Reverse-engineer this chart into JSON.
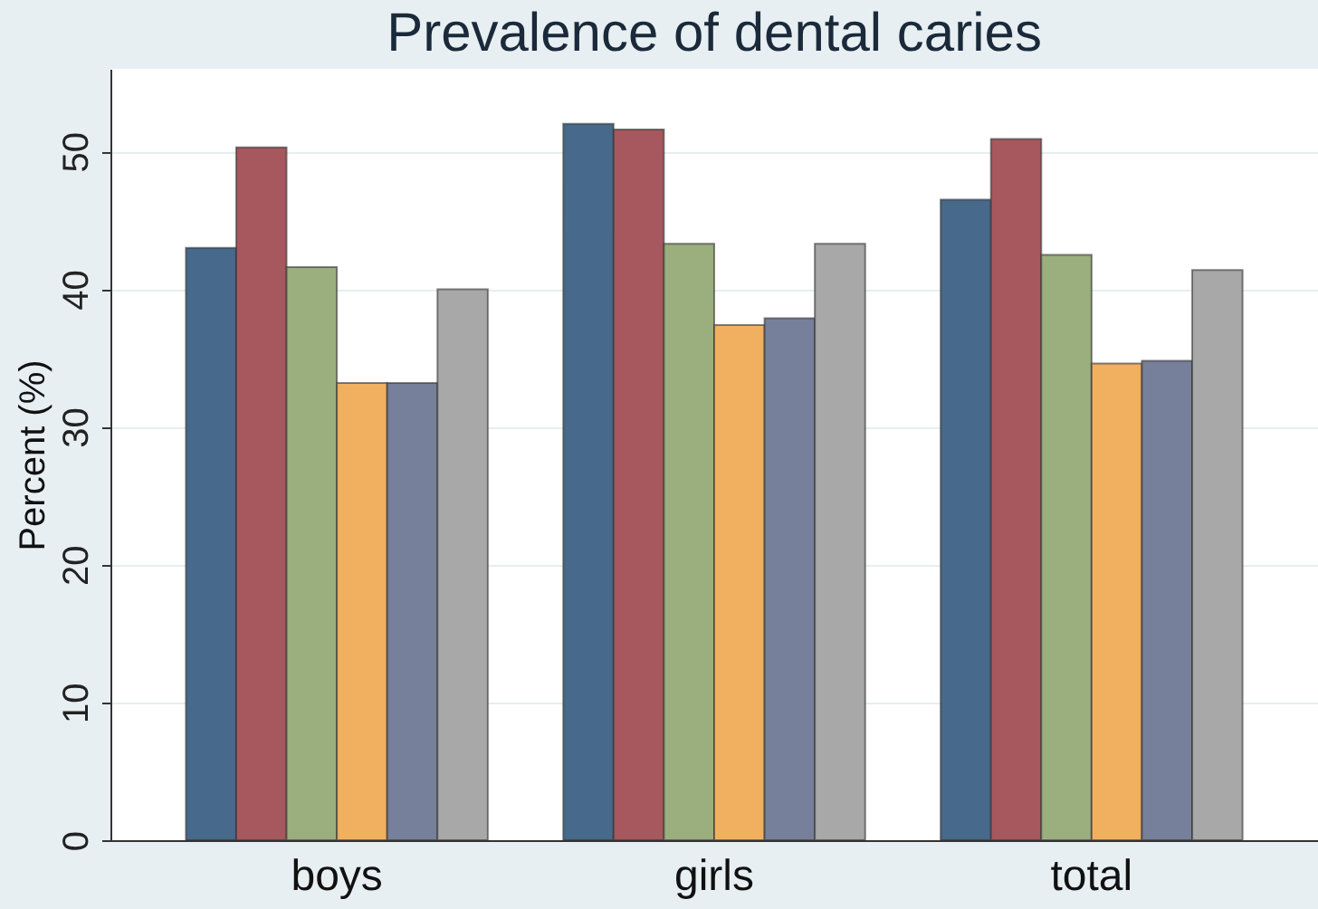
{
  "chart_data": {
    "type": "bar",
    "title": "Prevalence of dental caries",
    "ylabel": "Percent (%)",
    "categories": [
      "boys",
      "girls",
      "total"
    ],
    "series": [
      {
        "color": "#46698c",
        "values": [
          43.0,
          52.0,
          46.5
        ]
      },
      {
        "color": "#a6585e",
        "values": [
          50.3,
          51.6,
          50.9
        ]
      },
      {
        "color": "#9aae7e",
        "values": [
          41.6,
          43.3,
          42.5
        ]
      },
      {
        "color": "#f0b060",
        "values": [
          33.2,
          37.4,
          34.6
        ]
      },
      {
        "color": "#77809a",
        "values": [
          33.2,
          37.9,
          34.8
        ]
      },
      {
        "color": "#a8a8a8",
        "values": [
          40.0,
          43.3,
          41.4
        ]
      }
    ],
    "ylim": [
      0,
      56
    ],
    "yticks": [
      0,
      10,
      20,
      30,
      40,
      50
    ],
    "grid": "y",
    "legend": false
  }
}
